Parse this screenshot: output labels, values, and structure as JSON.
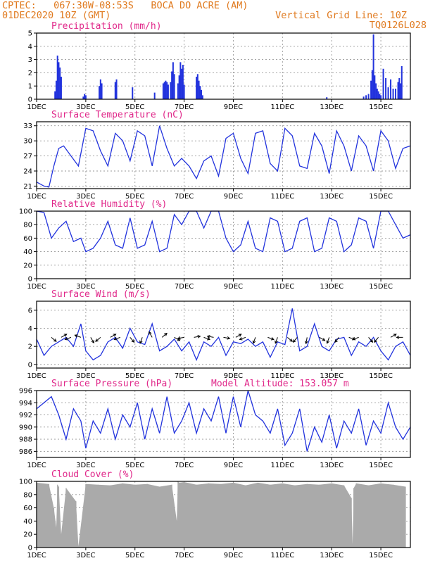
{
  "header": {
    "left_line1": "CPTEC:   067:30W-08:53S   BOCA DO ACRE (AM)",
    "left_line2": "01DEC2020 10Z (GMT)",
    "right_line1": "Vertical Grid Line: 10Z",
    "right_line2": "TQ0126L028"
  },
  "colors": {
    "series": "#2233dd",
    "header": "#e07a1f",
    "title": "#e0288a",
    "cloud": "#aaaaaa",
    "grid": "#9a9a9a"
  },
  "x_labels": [
    "1DEC",
    "3DEC",
    "5DEC",
    "7DEC",
    "9DEC",
    "11DEC",
    "13DEC",
    "15DEC"
  ],
  "x_label_days": [
    1,
    3,
    5,
    7,
    9,
    11,
    13,
    15
  ],
  "x_range_days": [
    1,
    16.2
  ],
  "chart_data": [
    {
      "type": "bar",
      "title": "Precipitation (mm/h)",
      "ylim": [
        0,
        5
      ],
      "yticks": [
        0,
        1,
        2,
        3,
        4,
        5
      ],
      "x_day": [
        1.75,
        1.8,
        1.85,
        1.9,
        1.95,
        2.0,
        2.9,
        2.95,
        3.0,
        3.55,
        3.6,
        3.65,
        4.2,
        4.25,
        4.9,
        5.8,
        6.15,
        6.2,
        6.25,
        6.3,
        6.35,
        6.45,
        6.5,
        6.55,
        6.6,
        6.75,
        6.8,
        6.85,
        6.9,
        6.95,
        7.0,
        7.5,
        7.55,
        7.6,
        7.65,
        7.7,
        7.75,
        12.8,
        14.3,
        14.4,
        14.5,
        14.6,
        14.65,
        14.7,
        14.75,
        14.8,
        14.85,
        14.9,
        14.95,
        15.0,
        15.1,
        15.2,
        15.3,
        15.4,
        15.5,
        15.6,
        15.7,
        15.75,
        15.8,
        15.85
      ],
      "values": [
        0.6,
        1.4,
        3.3,
        2.8,
        2.4,
        1.7,
        0.2,
        0.4,
        0.3,
        1.0,
        1.5,
        1.2,
        1.3,
        1.5,
        0.9,
        0.5,
        1.2,
        1.3,
        1.4,
        1.3,
        1.1,
        1.3,
        2.1,
        2.8,
        1.9,
        1.2,
        1.8,
        2.8,
        2.3,
        2.6,
        1.1,
        1.7,
        1.9,
        1.4,
        1.0,
        0.7,
        0.3,
        0.15,
        0.2,
        0.3,
        0.4,
        1.4,
        2.2,
        4.9,
        1.8,
        1.2,
        0.8,
        0.6,
        0.4,
        0.3,
        2.3,
        1.6,
        0.9,
        1.5,
        0.8,
        0.8,
        1.3,
        1.6,
        1.2,
        2.5
      ]
    },
    {
      "type": "line",
      "title": "Surface Temperature (nC)",
      "ylim": [
        20.5,
        33.8
      ],
      "yticks": [
        21,
        24,
        27,
        30,
        33
      ],
      "x_day": [
        1,
        1.3,
        1.5,
        1.7,
        1.9,
        2.1,
        2.4,
        2.7,
        3.0,
        3.3,
        3.6,
        3.9,
        4.2,
        4.5,
        4.8,
        5.1,
        5.4,
        5.7,
        6.0,
        6.3,
        6.6,
        6.9,
        7.2,
        7.5,
        7.8,
        8.1,
        8.4,
        8.7,
        9.0,
        9.3,
        9.6,
        9.9,
        10.2,
        10.5,
        10.8,
        11.1,
        11.4,
        11.7,
        12.0,
        12.3,
        12.6,
        12.9,
        13.2,
        13.5,
        13.8,
        14.1,
        14.4,
        14.7,
        15.0,
        15.3,
        15.6,
        15.9,
        16.2
      ],
      "values": [
        21.8,
        21.0,
        20.8,
        25.0,
        28.5,
        29.0,
        27.0,
        25.0,
        32.5,
        32.0,
        28.0,
        25.0,
        31.5,
        30.0,
        26.0,
        32.0,
        31.0,
        25.0,
        33.0,
        28.5,
        25.0,
        26.5,
        25.0,
        22.5,
        26.0,
        27.0,
        23.0,
        30.5,
        31.5,
        26.5,
        23.5,
        31.5,
        32.0,
        25.5,
        24.0,
        32.5,
        31.0,
        25.0,
        24.5,
        31.5,
        29.0,
        23.5,
        32.0,
        29.0,
        24.0,
        31.0,
        29.0,
        24.0,
        32.0,
        30.0,
        24.5,
        28.5,
        29.0
      ]
    },
    {
      "type": "line",
      "title": "Relative Humidity (%)",
      "ylim": [
        0,
        100
      ],
      "yticks": [
        0,
        20,
        40,
        60,
        80,
        100
      ],
      "x_day": [
        1,
        1.3,
        1.6,
        1.9,
        2.2,
        2.5,
        2.8,
        3.0,
        3.3,
        3.6,
        3.9,
        4.2,
        4.5,
        4.8,
        5.1,
        5.4,
        5.7,
        6.0,
        6.3,
        6.6,
        6.9,
        7.2,
        7.5,
        7.8,
        8.1,
        8.4,
        8.7,
        9.0,
        9.3,
        9.6,
        9.9,
        10.2,
        10.5,
        10.8,
        11.1,
        11.4,
        11.7,
        12.0,
        12.3,
        12.6,
        12.9,
        13.2,
        13.5,
        13.8,
        14.1,
        14.4,
        14.7,
        15.0,
        15.3,
        15.6,
        15.9,
        16.2
      ],
      "values": [
        100,
        98,
        60,
        75,
        85,
        55,
        60,
        40,
        45,
        60,
        85,
        50,
        45,
        90,
        45,
        50,
        85,
        40,
        45,
        95,
        80,
        100,
        100,
        75,
        100,
        100,
        60,
        40,
        50,
        85,
        45,
        40,
        90,
        85,
        40,
        45,
        85,
        90,
        40,
        45,
        90,
        85,
        40,
        50,
        90,
        85,
        45,
        100,
        100,
        80,
        60,
        65
      ]
    },
    {
      "type": "line",
      "title": "Surface Wind (m/s)",
      "ylim": [
        -0.4,
        7
      ],
      "yticks": [
        0,
        2,
        4,
        6
      ],
      "x_day": [
        1,
        1.3,
        1.6,
        1.9,
        2.2,
        2.5,
        2.8,
        3.0,
        3.3,
        3.6,
        3.9,
        4.2,
        4.5,
        4.8,
        5.1,
        5.4,
        5.7,
        6.0,
        6.3,
        6.6,
        6.9,
        7.2,
        7.5,
        7.8,
        8.1,
        8.4,
        8.7,
        9.0,
        9.3,
        9.6,
        9.9,
        10.2,
        10.5,
        10.8,
        11.1,
        11.4,
        11.7,
        12.0,
        12.3,
        12.6,
        12.9,
        13.2,
        13.5,
        13.8,
        14.1,
        14.4,
        14.7,
        15.0,
        15.3,
        15.6,
        15.9,
        16.2
      ],
      "values": [
        2.8,
        1.0,
        2.0,
        2.5,
        3.0,
        2.0,
        4.5,
        1.5,
        0.5,
        1.0,
        2.5,
        3.0,
        1.8,
        4.0,
        2.5,
        2.2,
        4.5,
        1.5,
        2.0,
        2.8,
        1.5,
        2.5,
        0.5,
        2.5,
        2.0,
        3.0,
        1.0,
        2.5,
        2.3,
        2.8,
        2.0,
        2.5,
        0.8,
        2.5,
        2.2,
        6.2,
        1.5,
        2.0,
        4.5,
        2.0,
        1.5,
        2.8,
        3.0,
        1.0,
        2.5,
        2.0,
        3.0,
        1.5,
        0.5,
        2.0,
        2.5,
        1.0
      ],
      "arrow_day": [
        1.6,
        2.0,
        2.4,
        2.8,
        3.2,
        3.6,
        4.0,
        4.4,
        4.8,
        5.3,
        5.7,
        6.1,
        6.6,
        7.0,
        7.4,
        7.8,
        8.2,
        8.6,
        9.1,
        9.5,
        9.9,
        10.4,
        10.8,
        11.2,
        11.6,
        12.0,
        12.5,
        12.9,
        13.3,
        13.7,
        14.1,
        14.5,
        14.9,
        15.4,
        15.9
      ],
      "arrow_dir_deg": [
        -40,
        30,
        200,
        160,
        -60,
        220,
        30,
        200,
        -50,
        250,
        120,
        40,
        -30,
        190,
        10,
        -20,
        170,
        -10,
        30,
        200,
        250,
        -20,
        250,
        -40,
        230,
        260,
        -30,
        250,
        230,
        -20,
        200,
        -50,
        230,
        30,
        180
      ]
    },
    {
      "type": "line",
      "title": "Surface Pressure (hPa)",
      "annotation": "Model Altitude: 153.057 m",
      "ylim": [
        985,
        996
      ],
      "yticks": [
        986,
        988,
        990,
        992,
        994,
        996
      ],
      "x_day": [
        1,
        1.3,
        1.6,
        1.9,
        2.2,
        2.5,
        2.8,
        3.0,
        3.3,
        3.6,
        3.9,
        4.2,
        4.5,
        4.8,
        5.1,
        5.4,
        5.7,
        6.0,
        6.3,
        6.6,
        6.9,
        7.2,
        7.5,
        7.8,
        8.1,
        8.4,
        8.7,
        9.0,
        9.3,
        9.6,
        9.9,
        10.2,
        10.5,
        10.8,
        11.1,
        11.4,
        11.7,
        12.0,
        12.3,
        12.6,
        12.9,
        13.2,
        13.5,
        13.8,
        14.1,
        14.4,
        14.7,
        15.0,
        15.3,
        15.6,
        15.9,
        16.2
      ],
      "values": [
        993,
        994,
        995,
        992,
        988,
        993,
        991,
        986.5,
        991,
        989,
        993,
        988,
        992,
        990,
        994,
        988,
        993,
        989,
        995,
        989,
        991,
        994,
        989,
        993,
        991,
        995,
        989,
        995,
        990,
        996,
        992,
        991,
        989,
        993,
        987,
        989,
        993,
        986,
        990,
        987.5,
        992,
        986.5,
        991,
        989,
        993,
        987,
        991,
        989,
        994,
        990,
        988,
        990
      ]
    },
    {
      "type": "bar",
      "title": "Cloud Cover (%)",
      "ylim": [
        0,
        100
      ],
      "yticks": [
        0,
        20,
        40,
        60,
        80,
        100
      ],
      "x_day": [
        1,
        1.5,
        1.7,
        1.8,
        1.85,
        1.9,
        2.0,
        2.2,
        2.6,
        2.7,
        3.0,
        3.5,
        4.0,
        4.5,
        5.0,
        5.5,
        6.0,
        6.5,
        6.7,
        6.75,
        6.8,
        7.0,
        7.5,
        8.0,
        8.5,
        9.0,
        9.5,
        10.0,
        10.5,
        11.0,
        11.5,
        12.0,
        12.5,
        13.0,
        13.5,
        13.8,
        13.85,
        13.9,
        14.0,
        14.5,
        15.0,
        15.5,
        16.0
      ],
      "values": [
        98,
        96,
        60,
        30,
        95,
        92,
        20,
        90,
        70,
        2,
        96,
        95,
        94,
        97,
        95,
        96,
        92,
        95,
        40,
        100,
        98,
        99,
        95,
        97,
        96,
        98,
        94,
        98,
        95,
        97,
        94,
        96,
        95,
        97,
        94,
        75,
        5,
        90,
        97,
        94,
        97,
        95,
        92
      ]
    }
  ]
}
